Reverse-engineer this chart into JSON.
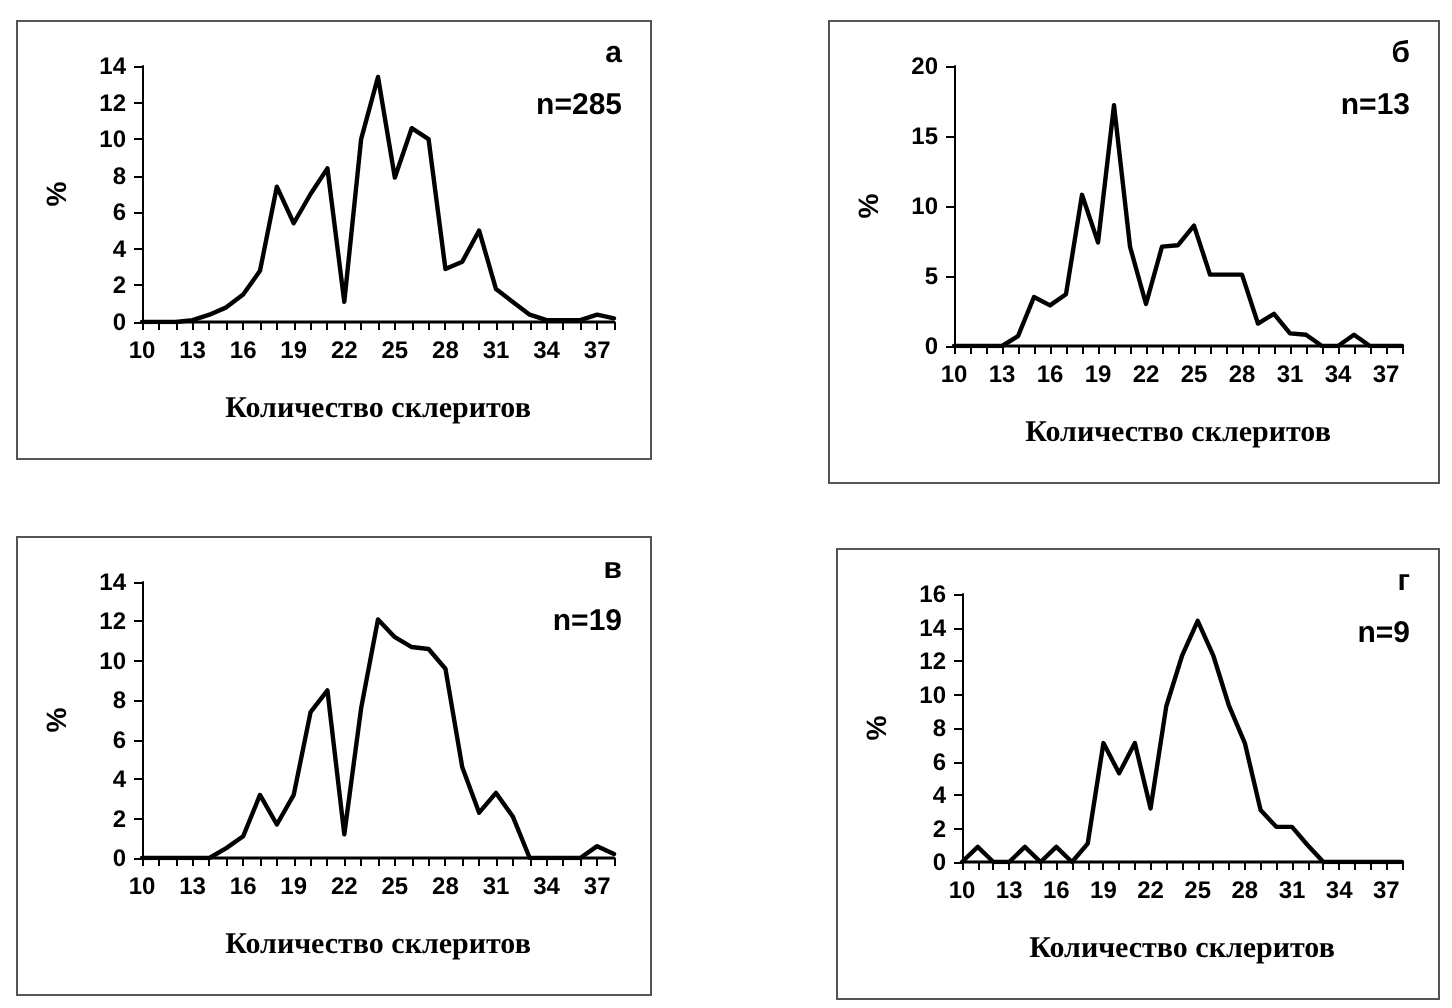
{
  "chart_data": [
    {
      "type": "line",
      "xlabel": "Количество склеритов",
      "ylabel": "%",
      "annotations": [
        "а",
        "n=285"
      ],
      "categories": [
        "10",
        null,
        null,
        "13",
        null,
        null,
        "16",
        null,
        null,
        "19",
        null,
        null,
        "22",
        null,
        null,
        "25",
        null,
        null,
        "28",
        null,
        null,
        "31",
        null,
        null,
        "34",
        null,
        null,
        "37",
        null
      ],
      "series": [
        {
          "color": "#000000",
          "values": [
            0,
            0,
            0,
            0.1,
            0.4,
            0.8,
            1.5,
            2.8,
            7.4,
            5.4,
            7,
            8.4,
            1.1,
            10,
            13.4,
            7.9,
            10.6,
            10,
            2.9,
            3.3,
            5,
            1.8,
            1.1,
            0.4,
            0.1,
            0.1,
            0.1,
            0.4,
            0.2
          ]
        }
      ],
      "ylim": [
        0,
        14
      ],
      "yticks": [
        0,
        2,
        4,
        6,
        8,
        10,
        12,
        14
      ],
      "grid": false,
      "marker": "none",
      "line_style": "solid"
    },
    {
      "type": "line",
      "xlabel": "Количество склеритов",
      "ylabel": "%",
      "annotations": [
        "б",
        "n=13"
      ],
      "categories": [
        "10",
        null,
        null,
        "13",
        null,
        null,
        "16",
        null,
        null,
        "19",
        null,
        null,
        "22",
        null,
        null,
        "25",
        null,
        null,
        "28",
        null,
        null,
        "31",
        null,
        null,
        "34",
        null,
        null,
        "37",
        null
      ],
      "series": [
        {
          "color": "#000000",
          "values": [
            0,
            0,
            0,
            0,
            0.7,
            3.5,
            2.9,
            3.7,
            10.8,
            7.4,
            17.2,
            7.1,
            3,
            7.1,
            7.2,
            8.6,
            5.1,
            5.1,
            5.1,
            1.6,
            2.3,
            0.9,
            0.8,
            0,
            0,
            0.8,
            0,
            0,
            0
          ]
        }
      ],
      "ylim": [
        0,
        20
      ],
      "yticks": [
        0,
        5,
        10,
        15,
        20
      ],
      "grid": false,
      "marker": "none",
      "line_style": "solid"
    },
    {
      "type": "line",
      "xlabel": "Количество склеритов",
      "ylabel": "%",
      "annotations": [
        "в",
        "n=19"
      ],
      "categories": [
        "10",
        null,
        null,
        "13",
        null,
        null,
        "16",
        null,
        null,
        "19",
        null,
        null,
        "22",
        null,
        null,
        "25",
        null,
        null,
        "28",
        null,
        null,
        "31",
        null,
        null,
        "34",
        null,
        null,
        "37",
        null
      ],
      "series": [
        {
          "color": "#000000",
          "values": [
            0,
            0,
            0,
            0,
            0,
            0.5,
            1.1,
            3.2,
            1.7,
            3.2,
            7.4,
            8.5,
            1.2,
            7.6,
            12.1,
            11.2,
            10.7,
            10.6,
            9.6,
            4.6,
            2.3,
            3.3,
            2.1,
            0,
            0,
            0,
            0,
            0.6,
            0.2
          ]
        }
      ],
      "ylim": [
        0,
        14
      ],
      "yticks": [
        0,
        2,
        4,
        6,
        8,
        10,
        12,
        14
      ],
      "grid": false,
      "marker": "none",
      "line_style": "solid"
    },
    {
      "type": "line",
      "xlabel": "Количество склеритов",
      "ylabel": "%",
      "annotations": [
        "г",
        "n=9"
      ],
      "categories": [
        "10",
        null,
        null,
        "13",
        null,
        null,
        "16",
        null,
        null,
        "19",
        null,
        null,
        "22",
        null,
        null,
        "25",
        null,
        null,
        "28",
        null,
        null,
        "31",
        null,
        null,
        "34",
        null,
        null,
        "37",
        null
      ],
      "series": [
        {
          "color": "#000000",
          "values": [
            0,
            0.9,
            0,
            0,
            0.9,
            0,
            0.9,
            0,
            1.1,
            7.1,
            5.3,
            7.1,
            3.2,
            9.3,
            12.3,
            14.4,
            12.3,
            9.3,
            7.1,
            3.1,
            2.1,
            2.1,
            1,
            0,
            0,
            0,
            0,
            0,
            0
          ]
        }
      ],
      "ylim": [
        0,
        16
      ],
      "yticks": [
        0,
        2,
        4,
        6,
        8,
        10,
        12,
        14,
        16
      ],
      "grid": false,
      "marker": "none",
      "line_style": "solid"
    }
  ]
}
